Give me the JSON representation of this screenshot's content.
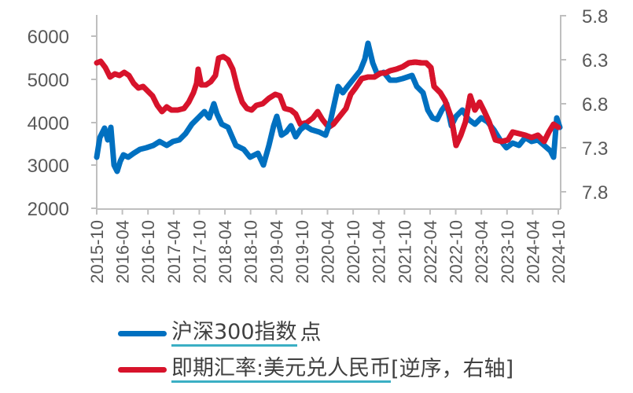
{
  "chart_data": {
    "type": "line",
    "title": "",
    "xlabel": "",
    "ylabel": "",
    "y_left": {
      "range": [
        2000,
        6500
      ],
      "ticks": [
        2000,
        3000,
        4000,
        5000,
        6000
      ]
    },
    "y_right": {
      "range": [
        5.8,
        7.8
      ],
      "inverted": true,
      "ticks": [
        5.8,
        6.3,
        6.8,
        7.3,
        7.8
      ]
    },
    "x_ticks": [
      "2015-10",
      "2016-04",
      "2016-10",
      "2017-04",
      "2017-10",
      "2018-04",
      "2018-10",
      "2019-04",
      "2019-10",
      "2020-04",
      "2020-10",
      "2021-04",
      "2021-10",
      "2022-04",
      "2022-10",
      "2023-04",
      "2023-10",
      "2024-04",
      "2024-10"
    ],
    "grid": false,
    "legend_position": "bottom",
    "series": [
      {
        "name": "沪深300指数",
        "unit": "点",
        "axis": "left",
        "color": "#0070C0",
        "x": [
          "2015-10",
          "2016-01",
          "2016-04",
          "2016-07",
          "2016-10",
          "2017-01",
          "2017-04",
          "2017-07",
          "2017-10",
          "2018-01",
          "2018-04",
          "2018-07",
          "2018-10",
          "2019-01",
          "2019-04",
          "2019-07",
          "2019-10",
          "2020-01",
          "2020-04",
          "2020-07",
          "2020-10",
          "2021-01",
          "2021-02",
          "2021-04",
          "2021-07",
          "2021-10",
          "2022-01",
          "2022-04",
          "2022-07",
          "2022-10",
          "2023-01",
          "2023-04",
          "2023-07",
          "2023-10",
          "2024-01",
          "2024-04",
          "2024-07",
          "2024-09",
          "2024-10"
        ],
        "values": [
          3000,
          3600,
          2950,
          3200,
          3250,
          3350,
          3450,
          3600,
          3850,
          4200,
          3800,
          3400,
          3200,
          3050,
          3900,
          3700,
          3850,
          4100,
          3800,
          4600,
          4700,
          5200,
          5750,
          5100,
          5000,
          4900,
          4700,
          4050,
          4200,
          3750,
          4100,
          4000,
          3900,
          3650,
          3450,
          3550,
          3450,
          3200,
          3950
        ]
      },
      {
        "name": "即期汇率:美元兑人民币[逆序，右轴]",
        "axis": "right",
        "color": "#D7132B",
        "x": [
          "2015-10",
          "2016-01",
          "2016-04",
          "2016-07",
          "2016-10",
          "2017-01",
          "2017-04",
          "2017-07",
          "2017-10",
          "2018-01",
          "2018-04",
          "2018-07",
          "2018-10",
          "2019-01",
          "2019-04",
          "2019-07",
          "2019-10",
          "2020-01",
          "2020-04",
          "2020-07",
          "2020-10",
          "2021-01",
          "2021-04",
          "2021-07",
          "2021-10",
          "2022-01",
          "2022-03",
          "2022-04",
          "2022-07",
          "2022-10",
          "2023-01",
          "2023-04",
          "2023-07",
          "2023-10",
          "2024-01",
          "2024-04",
          "2024-07",
          "2024-09",
          "2024-10"
        ],
        "values": [
          6.35,
          6.55,
          6.48,
          6.65,
          6.75,
          6.92,
          6.88,
          6.72,
          6.6,
          6.35,
          6.3,
          6.75,
          6.93,
          6.85,
          6.72,
          6.88,
          7.05,
          6.97,
          7.07,
          7.0,
          6.75,
          6.5,
          6.48,
          6.45,
          6.38,
          6.35,
          6.32,
          6.6,
          6.72,
          7.22,
          6.8,
          6.9,
          7.2,
          7.3,
          7.15,
          7.22,
          7.25,
          7.05,
          7.1
        ]
      }
    ]
  },
  "legend": {
    "items": [
      {
        "label": "沪深300指数",
        "suffix": "点",
        "color": "#0070C0"
      },
      {
        "label": "即期汇率:美元兑人民币",
        "suffix": "[逆序，右轴]",
        "color": "#D7132B"
      }
    ]
  },
  "axis_colors": {
    "axis": "#BFBFBF",
    "tick_text": "#595959"
  }
}
